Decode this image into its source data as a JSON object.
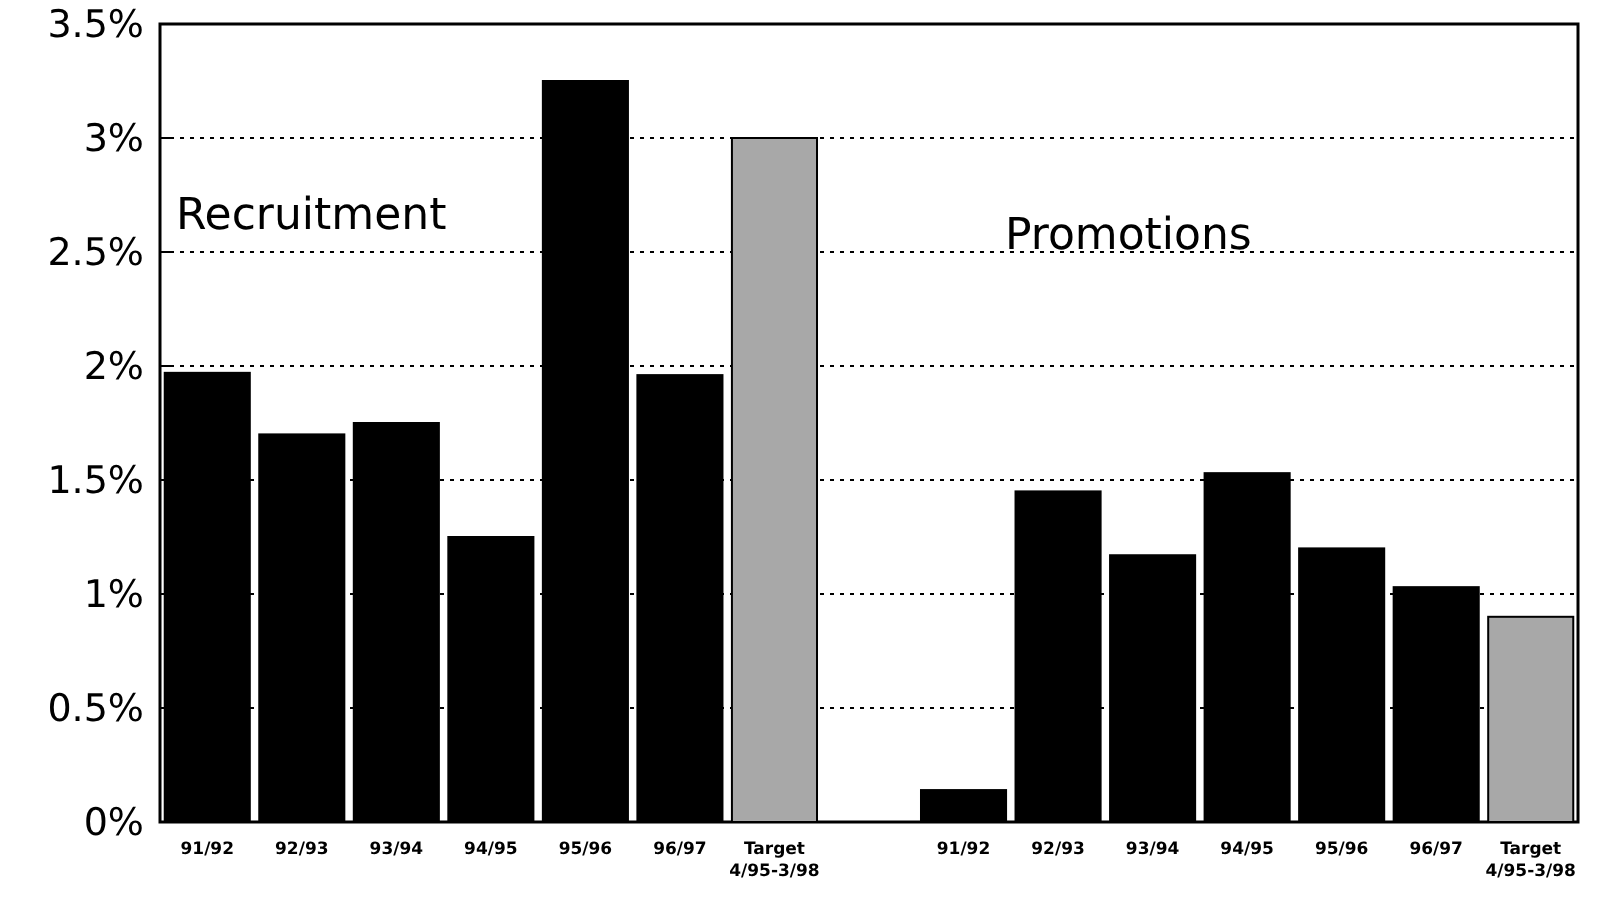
{
  "chart_data": {
    "type": "bar",
    "categories": [
      "91/92",
      "92/93",
      "93/94",
      "94/95",
      "95/96",
      "96/97",
      "Target\n4/95-3/98",
      null,
      "91/92",
      "92/93",
      "93/94",
      "94/95",
      "95/96",
      "96/97",
      "Target\n4/95-3/98"
    ],
    "values": [
      1.97,
      1.7,
      1.75,
      1.25,
      3.25,
      1.96,
      3.0,
      null,
      0.14,
      1.45,
      1.17,
      1.53,
      1.2,
      1.03,
      0.9
    ],
    "colors": [
      "#000000",
      "#000000",
      "#000000",
      "#000000",
      "#000000",
      "#000000",
      "#a8a8a8",
      null,
      "#000000",
      "#000000",
      "#000000",
      "#000000",
      "#000000",
      "#000000",
      "#a8a8a8"
    ],
    "ylim": [
      0,
      3.5
    ],
    "yticks": [
      {
        "value": 0,
        "label": "0%"
      },
      {
        "value": 0.5,
        "label": "0.5%"
      },
      {
        "value": 1,
        "label": "1%"
      },
      {
        "value": 1.5,
        "label": "1.5%"
      },
      {
        "value": 2,
        "label": "2%"
      },
      {
        "value": 2.5,
        "label": "2.5%"
      },
      {
        "value": 3,
        "label": "3%"
      },
      {
        "value": 3.5,
        "label": "3.5%"
      }
    ],
    "grid": "y",
    "annotations": [
      "Recruitment",
      "Promotions"
    ]
  }
}
